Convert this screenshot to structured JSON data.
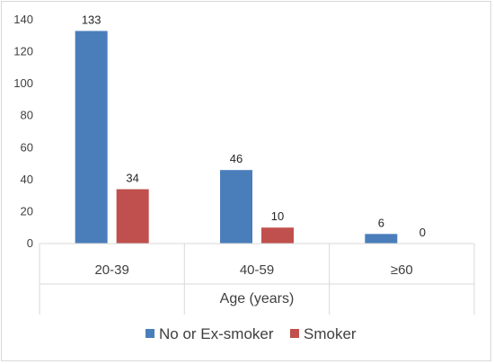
{
  "chart_data": {
    "type": "bar",
    "categories": [
      "20-39",
      "40-59",
      "≥60"
    ],
    "series": [
      {
        "name": "No or Ex-smoker",
        "values": [
          133,
          46,
          6
        ],
        "color": "#4a7ebb"
      },
      {
        "name": "Smoker",
        "values": [
          34,
          10,
          0
        ],
        "color": "#c0504d"
      }
    ],
    "yticks": [
      "0",
      "20",
      "40",
      "60",
      "80",
      "100",
      "120",
      "140"
    ],
    "ylim": [
      0,
      140
    ],
    "xlabel": "Age (years)",
    "grid": false,
    "legend_position": "bottom"
  }
}
